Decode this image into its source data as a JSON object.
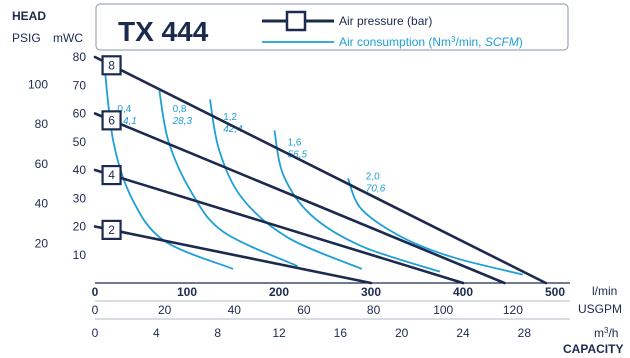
{
  "chart_data": {
    "type": "line",
    "title": "TX 444",
    "legend": {
      "pressure_label": "Air pressure (bar)",
      "consumption_label_main": "Air consumption (Nm",
      "consumption_label_sup": "3",
      "consumption_label_tail": "/min, ",
      "consumption_label_scfm": "SCFM",
      "consumption_label_end": ")"
    },
    "y_axes": {
      "header": "HEAD",
      "left_unit": "PSIG",
      "right_unit": "mWC",
      "psig_ticks": [
        "20",
        "40",
        "60",
        "80",
        "100"
      ],
      "mwc_ticks": [
        "10",
        "20",
        "30",
        "40",
        "50",
        "60",
        "70",
        "80"
      ],
      "mwc_range": [
        0,
        80
      ]
    },
    "x_axes": {
      "lpm_unit": "l/min",
      "lpm_ticks": [
        "0",
        "100",
        "200",
        "300",
        "400",
        "500"
      ],
      "lpm_range": [
        0,
        500
      ],
      "usgpm_unit": "USGPM",
      "usgpm_ticks": [
        "0",
        "20",
        "40",
        "60",
        "80",
        "100",
        "120"
      ],
      "m3h_unit_main": "m",
      "m3h_unit_sup": "3",
      "m3h_unit_tail": "/h",
      "m3h_ticks": [
        "0",
        "4",
        "8",
        "12",
        "16",
        "20",
        "24",
        "28"
      ],
      "capacity_label": "CAPACITY"
    },
    "pressure_series": [
      {
        "name": "8",
        "x": [
          0,
          490
        ],
        "y": [
          80,
          0
        ]
      },
      {
        "name": "6",
        "x": [
          0,
          445
        ],
        "y": [
          60,
          0
        ]
      },
      {
        "name": "4",
        "x": [
          0,
          400
        ],
        "y": [
          40,
          0
        ]
      },
      {
        "name": "2",
        "x": [
          0,
          300
        ],
        "y": [
          20,
          0
        ]
      }
    ],
    "consumption_series": [
      {
        "label_nm3": "0,4",
        "label_scfm": "14,1",
        "x": [
          10,
          20,
          40,
          75,
          150
        ],
        "y": [
          78,
          50,
          30,
          15,
          5
        ]
      },
      {
        "label_nm3": "0,8",
        "label_scfm": "28,3",
        "x": [
          70,
          80,
          105,
          140,
          220
        ],
        "y": [
          68,
          50,
          32,
          18,
          6
        ]
      },
      {
        "label_nm3": "1,2",
        "label_scfm": "42,4",
        "x": [
          125,
          135,
          160,
          210,
          290
        ],
        "y": [
          65,
          47,
          30,
          16,
          5
        ]
      },
      {
        "label_nm3": "1,6",
        "label_scfm": "56,5",
        "x": [
          195,
          205,
          235,
          290,
          375
        ],
        "y": [
          54,
          38,
          24,
          13,
          4
        ]
      },
      {
        "label_nm3": "2,0",
        "label_scfm": "70,6",
        "x": [
          275,
          290,
          335,
          390,
          465
        ],
        "y": [
          37,
          26,
          16,
          9,
          3
        ]
      }
    ],
    "grid": false,
    "colors": {
      "pressure": "#1b2a4e",
      "consumption": "#1e9fd6",
      "title": "#1b2a4e"
    }
  }
}
